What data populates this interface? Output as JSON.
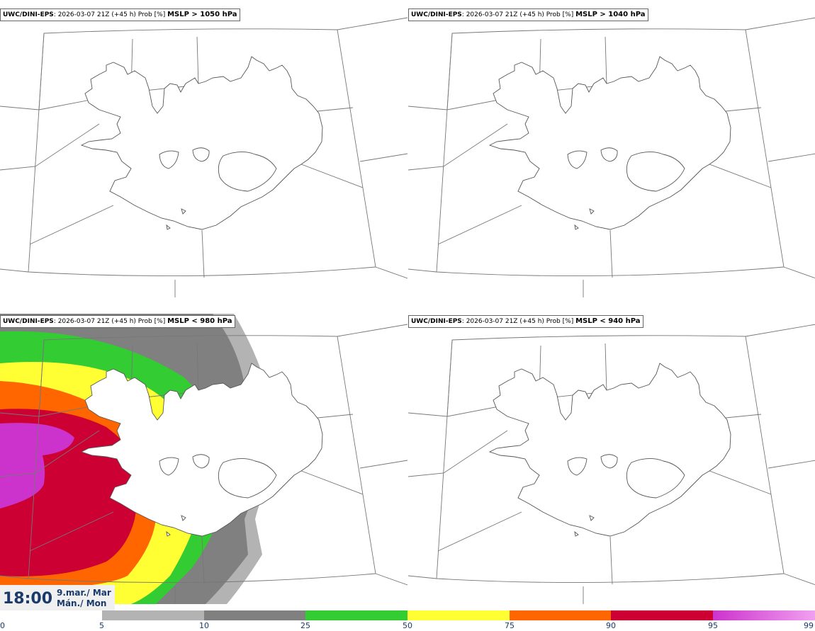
{
  "panels": [
    {
      "source": "UWC/DINI-EPS",
      "meta": ": 2026-03-07 21Z (+45 h) Prob [%] ",
      "threshold": "MSLP > 1050 hPa"
    },
    {
      "source": "UWC/DINI-EPS",
      "meta": ": 2026-03-07 21Z (+45 h) Prob [%] ",
      "threshold": "MSLP > 1040 hPa"
    },
    {
      "source": "UWC/DINI-EPS",
      "meta": ": 2026-03-07 21Z (+45 h) Prob [%] ",
      "threshold": "MSLP < 980 hPa"
    },
    {
      "source": "UWC/DINI-EPS",
      "meta": ": 2026-03-07 21Z (+45 h) Prob [%] ",
      "threshold": "MSLP < 940 hPa"
    }
  ],
  "time": {
    "clock": "18:00",
    "date_is": "9.mar./ Mar",
    "day": "Mán./ Mon"
  },
  "colorbar": {
    "ticks": [
      "0",
      "5",
      "10",
      "25",
      "50",
      "75",
      "90",
      "95",
      "99"
    ],
    "colors": [
      "#b3b3b3",
      "#808080",
      "#33cc33",
      "#ffff33",
      "#ff6600",
      "#cc0033",
      "#cc33cc",
      "#f0a0f0"
    ]
  },
  "colors": {
    "coast": "#555555",
    "grid": "#777777",
    "label_text": "#1a3a6b"
  }
}
